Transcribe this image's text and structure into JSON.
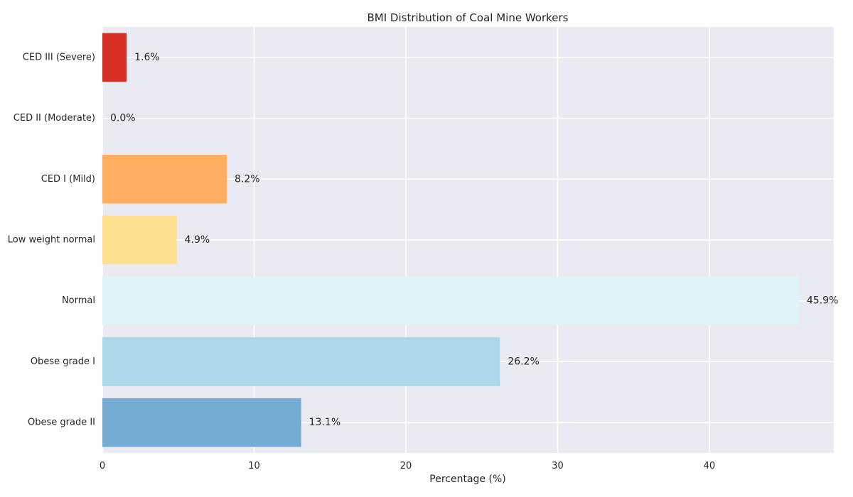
{
  "chart_data": {
    "type": "bar",
    "orientation": "horizontal",
    "title": "BMI Distribution of Coal Mine Workers",
    "xlabel": "Percentage (%)",
    "ylabel": "",
    "xlim": [
      0,
      48.2
    ],
    "x_ticks": [
      0,
      10,
      20,
      30,
      40
    ],
    "grid": true,
    "legend": "none",
    "background_color": "#eaeaf2",
    "grid_color": "#ffffff",
    "categories": [
      "CED III (Severe)",
      "CED II (Moderate)",
      "CED I (Mild)",
      "Low weight normal",
      "Normal",
      "Obese grade I",
      "Obese grade II"
    ],
    "values": [
      1.6,
      0.0,
      8.2,
      4.9,
      45.9,
      26.2,
      13.1
    ],
    "value_labels": [
      "1.6%",
      "0.0%",
      "8.2%",
      "4.9%",
      "45.9%",
      "26.2%",
      "13.1%"
    ],
    "colors": [
      "#d73027",
      "#fc8d59",
      "#fdae61",
      "#fee090",
      "#e0f3f8",
      "#abd9e9",
      "#74add1"
    ]
  }
}
